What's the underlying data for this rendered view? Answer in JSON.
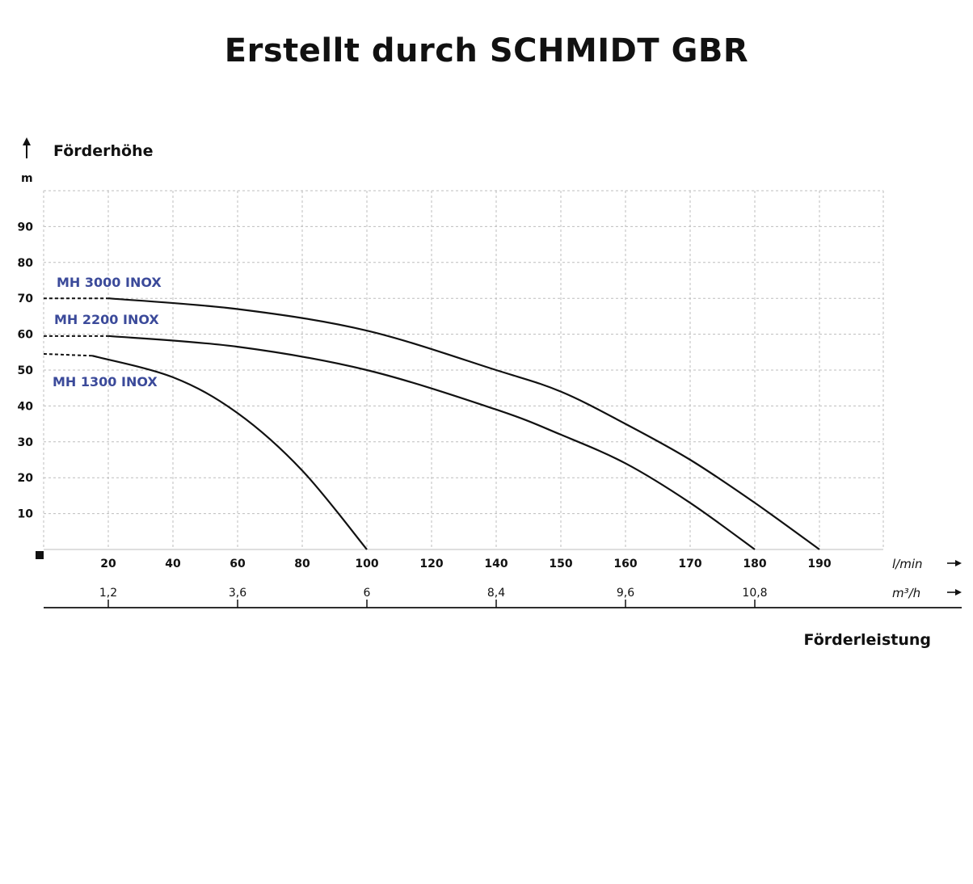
{
  "title": "Erstellt durch  SCHMIDT GBR",
  "chart_data": {
    "type": "line",
    "ylabel": "Förderhöhe",
    "yunit": "m",
    "xlabel": "Förderleistung",
    "xunit": "l/min",
    "x2unit": "m³/h",
    "ylim": [
      0,
      100
    ],
    "yticks": [
      10,
      20,
      30,
      40,
      50,
      60,
      70,
      80,
      90
    ],
    "xticks": [
      {
        "label": "20",
        "m3h": "1,2"
      },
      {
        "label": "40",
        "m3h": ""
      },
      {
        "label": "60",
        "m3h": "3,6"
      },
      {
        "label": "80",
        "m3h": ""
      },
      {
        "label": "100",
        "m3h": "6"
      },
      {
        "label": "120",
        "m3h": ""
      },
      {
        "label": "140",
        "m3h": "8,4"
      },
      {
        "label": "150",
        "m3h": ""
      },
      {
        "label": "160",
        "m3h": "9,6"
      },
      {
        "label": "170",
        "m3h": ""
      },
      {
        "label": "180",
        "m3h": "10,8"
      },
      {
        "label": "190",
        "m3h": ""
      }
    ],
    "grid": true,
    "series": [
      {
        "name": "MH 3000 INOX",
        "color": "#3b4a9a",
        "dashed_until": 1,
        "points": [
          {
            "x": 0,
            "y": 70
          },
          {
            "x": 20,
            "y": 70
          },
          {
            "x": 60,
            "y": 67
          },
          {
            "x": 100,
            "y": 61
          },
          {
            "x": 140,
            "y": 50
          },
          {
            "x": 150,
            "y": 44
          },
          {
            "x": 160,
            "y": 35
          },
          {
            "x": 170,
            "y": 25
          },
          {
            "x": 180,
            "y": 13
          },
          {
            "x": 190,
            "y": 0
          }
        ]
      },
      {
        "name": "MH 2200 INOX",
        "color": "#3b4a9a",
        "dashed_until": 1,
        "points": [
          {
            "x": 0,
            "y": 59.5
          },
          {
            "x": 20,
            "y": 59.5
          },
          {
            "x": 60,
            "y": 56.5
          },
          {
            "x": 100,
            "y": 50
          },
          {
            "x": 140,
            "y": 39
          },
          {
            "x": 150,
            "y": 32
          },
          {
            "x": 160,
            "y": 24
          },
          {
            "x": 170,
            "y": 13
          },
          {
            "x": 180,
            "y": 0
          }
        ]
      },
      {
        "name": "MH 1300 INOX",
        "color": "#3b4a9a",
        "dashed_until": 1,
        "points": [
          {
            "x": 0,
            "y": 54.5
          },
          {
            "x": 15,
            "y": 54
          },
          {
            "x": 40,
            "y": 48
          },
          {
            "x": 60,
            "y": 38
          },
          {
            "x": 80,
            "y": 22
          },
          {
            "x": 100,
            "y": 0
          }
        ]
      }
    ]
  }
}
